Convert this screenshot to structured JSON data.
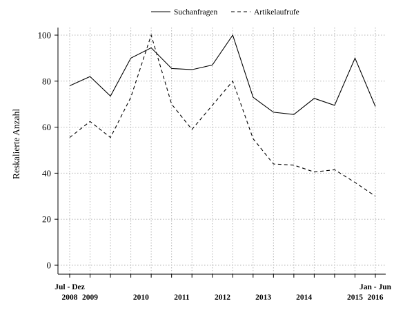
{
  "chart_data": {
    "type": "line",
    "ylabel": "Reskalierte Anzahl",
    "xlabel": "",
    "ylim": [
      0,
      100
    ],
    "yticks": [
      0,
      20,
      40,
      60,
      80,
      100
    ],
    "x_positions": 16,
    "x_tick_labels": [
      {
        "top": "Jul - Dez",
        "bottom": "2008",
        "at": 0
      },
      {
        "top": "",
        "bottom": "2009",
        "at": 1
      },
      {
        "top": "",
        "bottom": "2010",
        "at": 3.5
      },
      {
        "top": "",
        "bottom": "2011",
        "at": 5.5
      },
      {
        "top": "",
        "bottom": "2012",
        "at": 7.5
      },
      {
        "top": "",
        "bottom": "2013",
        "at": 9.5
      },
      {
        "top": "",
        "bottom": "2014",
        "at": 11.5
      },
      {
        "top": "",
        "bottom": "2015",
        "at": 14
      },
      {
        "top": "Jan - Jun",
        "bottom": "2016",
        "at": 15
      }
    ],
    "grid": true,
    "legend_position": "top-center",
    "series": [
      {
        "name": "Suchanfragen",
        "style": "solid",
        "values": [
          78,
          82,
          73.5,
          90,
          94.5,
          85.5,
          85,
          87,
          100,
          73,
          66.5,
          65.5,
          72.5,
          69.5,
          90,
          69
        ]
      },
      {
        "name": "Artikelaufrufe",
        "style": "dashed",
        "values": [
          55.5,
          62.5,
          55.5,
          73,
          100,
          70,
          59,
          69.5,
          80,
          55,
          44,
          43.5,
          40.5,
          41.5,
          36,
          30
        ]
      }
    ]
  }
}
